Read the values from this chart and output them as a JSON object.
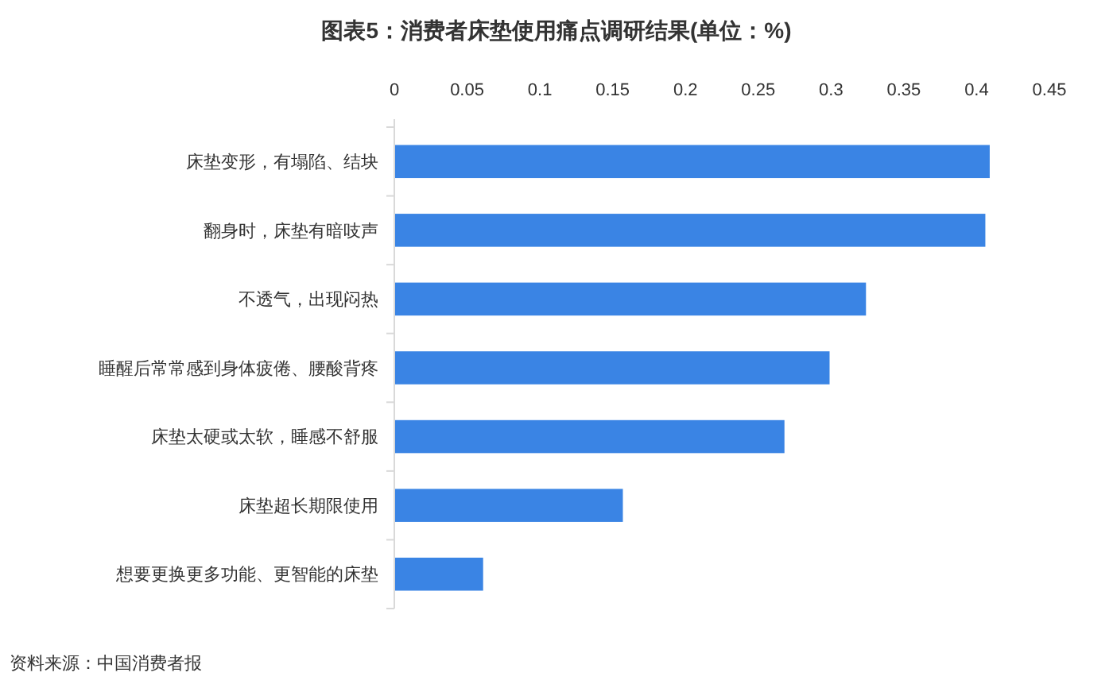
{
  "chart_data": {
    "type": "bar",
    "orientation": "horizontal",
    "title": "图表5：消费者床垫使用痛点调研结果(单位：%)",
    "categories": [
      "床垫变形，有塌陷、结块",
      "翻身时，床垫有暗吱声",
      "不透气，出现闷热",
      "睡醒后常常感到身体疲倦、腰酸背疼",
      "床垫太硬或太软，睡感不舒服",
      "床垫超长期限使用",
      "想要更换更多功能、更智能的床垫"
    ],
    "values": [
      0.409,
      0.406,
      0.324,
      0.299,
      0.268,
      0.157,
      0.061
    ],
    "color": "#3a84e4",
    "xlim": [
      0,
      0.45
    ],
    "xticks": [
      0,
      0.05,
      0.1,
      0.15,
      0.2,
      0.25,
      0.3,
      0.35,
      0.4,
      0.45
    ],
    "grid": false,
    "annotations": [
      "资料来源：中国消费者报"
    ]
  }
}
